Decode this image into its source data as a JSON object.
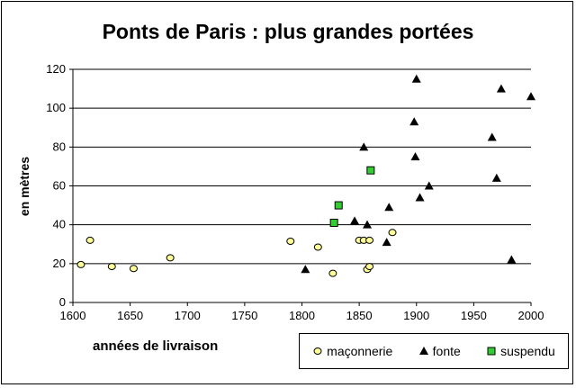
{
  "chart_data": {
    "type": "scatter",
    "title": "Ponts de Paris : plus grandes portées",
    "xlabel": "années de livraison",
    "ylabel": "en mètres",
    "xlim": [
      1600,
      2000
    ],
    "ylim": [
      0,
      120
    ],
    "xticks": [
      1600,
      1650,
      1700,
      1750,
      1800,
      1850,
      1900,
      1950,
      2000
    ],
    "yticks": [
      0,
      20,
      40,
      60,
      80,
      100,
      120
    ],
    "grid": "horizontal",
    "legend_position": "bottom-right",
    "series": [
      {
        "name": "maçonnerie",
        "marker": "circle",
        "color": "#ffff99",
        "points": [
          [
            1607,
            19.5
          ],
          [
            1615,
            32
          ],
          [
            1634,
            18.5
          ],
          [
            1653,
            17.5
          ],
          [
            1685,
            23
          ],
          [
            1790,
            31.5
          ],
          [
            1814,
            28.5
          ],
          [
            1827,
            15
          ],
          [
            1850,
            32
          ],
          [
            1854,
            32
          ],
          [
            1857,
            17
          ],
          [
            1859,
            18.5
          ],
          [
            1859,
            32
          ],
          [
            1879,
            36
          ]
        ]
      },
      {
        "name": "fonte",
        "marker": "triangle",
        "color": "#000000",
        "points": [
          [
            1803,
            17
          ],
          [
            1846,
            42
          ],
          [
            1854,
            80
          ],
          [
            1857,
            40
          ],
          [
            1874,
            31
          ],
          [
            1876,
            49
          ],
          [
            1898,
            93
          ],
          [
            1899,
            75
          ],
          [
            1900,
            115
          ],
          [
            1903,
            54
          ],
          [
            1911,
            60
          ],
          [
            1966,
            85
          ],
          [
            1970,
            64
          ],
          [
            1974,
            110
          ],
          [
            1983,
            22
          ],
          [
            2000,
            106
          ]
        ]
      },
      {
        "name": "suspendu",
        "marker": "square",
        "color": "#33cc33",
        "points": [
          [
            1828,
            41
          ],
          [
            1832,
            50
          ],
          [
            1860,
            68
          ]
        ]
      }
    ]
  }
}
